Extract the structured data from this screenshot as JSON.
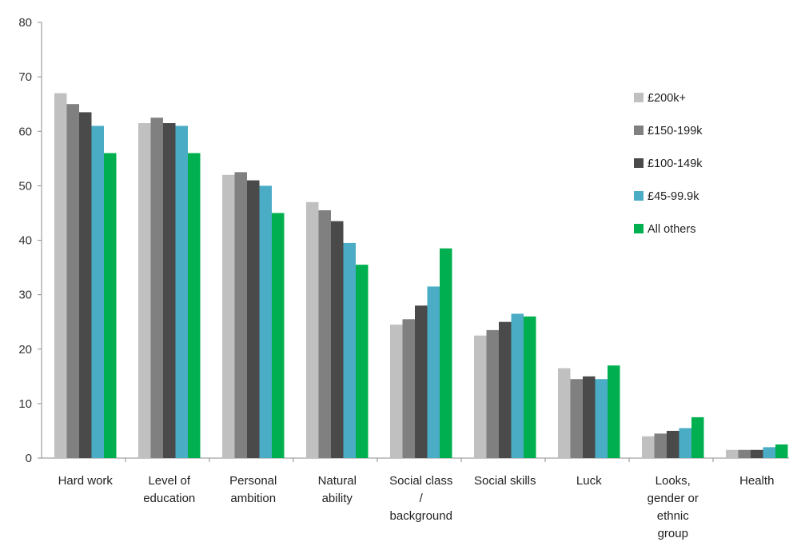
{
  "chart_data": {
    "type": "bar",
    "title": "",
    "xlabel": "",
    "ylabel": "",
    "ylim": [
      0,
      80
    ],
    "yticks": [
      0,
      10,
      20,
      30,
      40,
      50,
      60,
      70,
      80
    ],
    "grid": false,
    "legend_position": "right",
    "categories": [
      "Hard work",
      "Level of education",
      "Personal ambition",
      "Natural ability",
      "Social class / background",
      "Social skills",
      "Luck",
      "Looks, gender or ethnic group",
      "Health"
    ],
    "category_label_lines": [
      [
        "Hard work"
      ],
      [
        "Level of",
        "education"
      ],
      [
        "Personal",
        "ambition"
      ],
      [
        "Natural",
        "ability"
      ],
      [
        "Social class",
        "/",
        "background"
      ],
      [
        "Social skills"
      ],
      [
        "Luck"
      ],
      [
        "Looks,",
        "gender or",
        "ethnic",
        "group"
      ],
      [
        "Health"
      ]
    ],
    "series": [
      {
        "name": "£200k+",
        "color": "#c0c0c0",
        "values": [
          67,
          61.5,
          52,
          47,
          24.5,
          22.5,
          16.5,
          4,
          1.5
        ]
      },
      {
        "name": "£150-199k",
        "color": "#808080",
        "values": [
          65,
          62.5,
          52.5,
          45.5,
          25.5,
          23.5,
          14.5,
          4.5,
          1.5
        ]
      },
      {
        "name": "£100-149k",
        "color": "#4a4a4a",
        "values": [
          63.5,
          61.5,
          51,
          43.5,
          28,
          25,
          15,
          5,
          1.5
        ]
      },
      {
        "name": "£45-99.9k",
        "color": "#4bacc6",
        "values": [
          61,
          61,
          50,
          39.5,
          31.5,
          26.5,
          14.5,
          5.5,
          2
        ]
      },
      {
        "name": "All others",
        "color": "#00b050",
        "values": [
          56,
          56,
          45,
          35.5,
          38.5,
          26,
          17,
          7.5,
          2.5
        ]
      }
    ]
  }
}
